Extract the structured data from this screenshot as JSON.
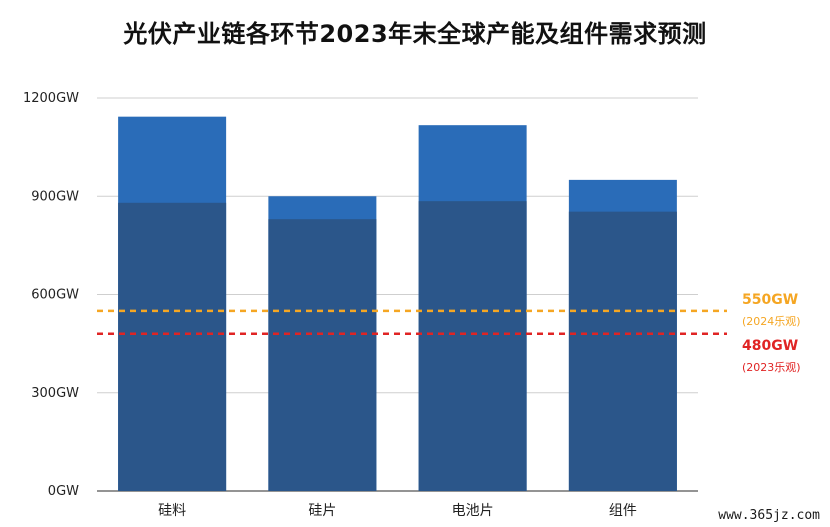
{
  "chart_data": {
    "type": "bar",
    "title": "光伏产业链各环节2023年末全球产能及组件需求预测",
    "categories": [
      "硅料",
      "硅片",
      "电池片",
      "组件"
    ],
    "series": [
      {
        "values": [
          880,
          830,
          885,
          853
        ],
        "color": "#2b568a"
      },
      {
        "values": [
          1143,
          900,
          1117,
          950
        ],
        "color": "#2a6cb8"
      }
    ],
    "ylim": [
      0,
      1200
    ],
    "yticks": [
      0,
      300,
      600,
      900,
      1200
    ],
    "ytick_labels": [
      "0GW",
      "300GW",
      "600GW",
      "900GW",
      "1200GW"
    ],
    "grid": true,
    "reference_lines": [
      {
        "value": 550,
        "label": "550GW",
        "sublabel": "(2024乐观)",
        "color": "#f5a623"
      },
      {
        "value": 480,
        "label": "480GW",
        "sublabel": "(2023乐观)",
        "color": "#e02424"
      }
    ]
  },
  "watermark": "www.365jz.com"
}
